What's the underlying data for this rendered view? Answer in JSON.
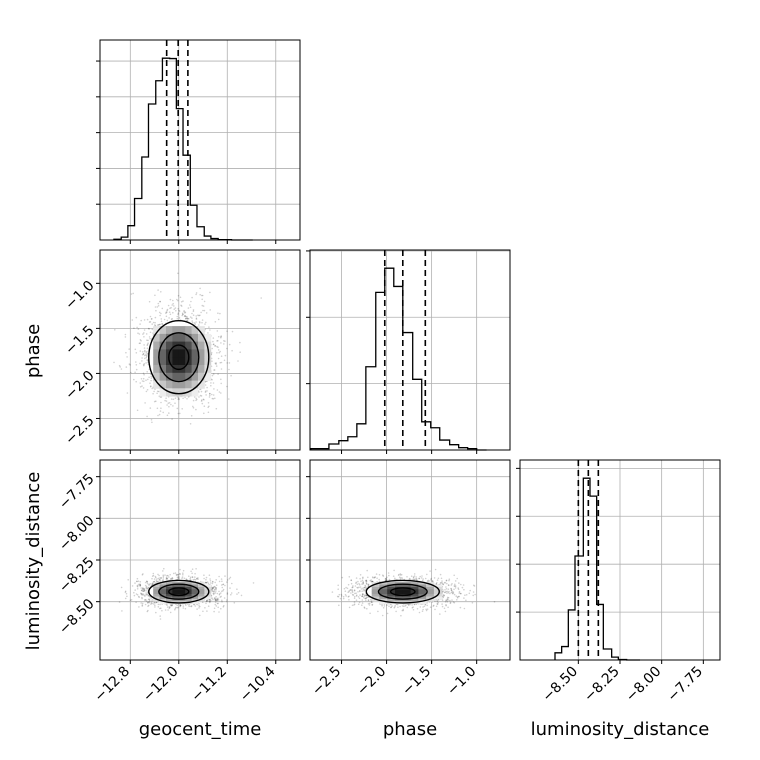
{
  "chart_data": {
    "type": "corner",
    "variables": [
      "geocent_time",
      "phase",
      "luminosity_distance"
    ],
    "axis_labels": {
      "geocent_time": "geocent_time",
      "phase": "phase",
      "luminosity_distance": "luminosity_distance"
    },
    "ranges": {
      "geocent_time": [
        -13.3,
        -10.0
      ],
      "phase": [
        -2.85,
        -0.63
      ],
      "luminosity_distance": [
        -8.85,
        -7.65
      ]
    },
    "ticks": {
      "geocent_time": {
        "values": [
          -12.8,
          -12.0,
          -11.2,
          -10.4
        ],
        "labels": [
          "−12.8",
          "−12.0",
          "−11.2",
          "−10.4"
        ]
      },
      "phase": {
        "values": [
          -2.5,
          -2.0,
          -1.5,
          -1.0
        ],
        "labels": [
          "−2.5",
          "−2.0",
          "−1.5",
          "−1.0"
        ]
      },
      "luminosity_distance": {
        "values": [
          -8.5,
          -8.25,
          -8.0,
          -7.75
        ],
        "labels": [
          "−8.50",
          "−8.25",
          "−8.00",
          "−7.75"
        ]
      }
    },
    "histograms": [
      {
        "variable": "geocent_time",
        "edges": [
          -13.07,
          -12.95,
          -12.84,
          -12.73,
          -12.61,
          -12.5,
          -12.38,
          -12.27,
          -12.15,
          -12.04,
          -11.93,
          -11.81,
          -11.7,
          -11.58,
          -11.47,
          -11.35,
          -11.24,
          -11.13,
          -11.01,
          -10.9,
          -10.78
        ],
        "counts": [
          2,
          8,
          40,
          116,
          232,
          380,
          445,
          508,
          507,
          367,
          237,
          97,
          37,
          11,
          4,
          1,
          1,
          0,
          0,
          0
        ],
        "quantiles": [
          -12.2,
          -12.01,
          -11.85
        ]
      },
      {
        "variable": "phase",
        "edges": [
          -2.84,
          -2.74,
          -2.64,
          -2.53,
          -2.43,
          -2.33,
          -2.23,
          -2.12,
          -2.02,
          -1.92,
          -1.82,
          -1.71,
          -1.61,
          -1.51,
          -1.41,
          -1.3,
          -1.2,
          -1.1,
          -1.0,
          -0.89
        ],
        "counts": [
          4,
          4,
          18,
          28,
          40,
          79,
          251,
          475,
          548,
          493,
          354,
          213,
          85,
          67,
          30,
          16,
          7,
          4,
          0
        ],
        "quantiles": [
          -2.02,
          -1.82,
          -1.57
        ]
      },
      {
        "variable": "luminosity_distance",
        "edges": [
          -8.64,
          -8.6,
          -8.56,
          -8.52,
          -8.47,
          -8.43,
          -8.39,
          -8.35,
          -8.3,
          -8.26,
          -8.21,
          -8.17,
          -8.13
        ],
        "counts": [
          30,
          56,
          209,
          434,
          759,
          684,
          232,
          46,
          12,
          2,
          0,
          0
        ],
        "quantiles": [
          -8.5,
          -8.44,
          -8.38
        ]
      }
    ],
    "scatter_panels": [
      {
        "x": "geocent_time",
        "y": "phase",
        "center": [
          -12.0,
          -1.82
        ],
        "spread": [
          0.33,
          0.27
        ]
      },
      {
        "x": "geocent_time",
        "y": "luminosity_distance",
        "center": [
          -12.0,
          -8.44
        ],
        "spread": [
          0.33,
          0.045
        ]
      },
      {
        "x": "phase",
        "y": "luminosity_distance",
        "center": [
          -1.82,
          -8.44
        ],
        "spread": [
          0.27,
          0.045
        ]
      }
    ],
    "quantile_levels": [
      0.16,
      0.5,
      0.84
    ],
    "contour_levels": [
      0.39,
      0.86,
      0.99
    ],
    "grid": true,
    "colors": {
      "lines": "#000000",
      "points": "#000000",
      "grid": "#b0b0b0"
    }
  }
}
